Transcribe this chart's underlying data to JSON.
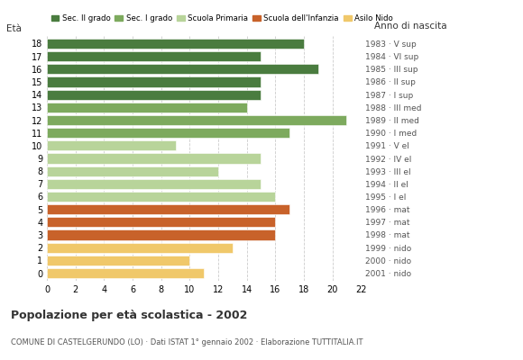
{
  "ages": [
    18,
    17,
    16,
    15,
    14,
    13,
    12,
    11,
    10,
    9,
    8,
    7,
    6,
    5,
    4,
    3,
    2,
    1,
    0
  ],
  "values": [
    18,
    15,
    19,
    15,
    15,
    14,
    21,
    17,
    9,
    15,
    12,
    15,
    16,
    17,
    16,
    16,
    13,
    10,
    11
  ],
  "colors_by_age": {
    "18": "#4a7c3f",
    "17": "#4a7c3f",
    "16": "#4a7c3f",
    "15": "#4a7c3f",
    "14": "#4a7c3f",
    "13": "#7daa5e",
    "12": "#7daa5e",
    "11": "#7daa5e",
    "10": "#b8d49a",
    "9": "#b8d49a",
    "8": "#b8d49a",
    "7": "#b8d49a",
    "6": "#b8d49a",
    "5": "#c8622a",
    "4": "#c8622a",
    "3": "#c8622a",
    "2": "#f0c86a",
    "1": "#f0c86a",
    "0": "#f0c86a"
  },
  "legend_colors": [
    "#4a7c3f",
    "#7daa5e",
    "#b8d49a",
    "#c8622a",
    "#f0c86a"
  ],
  "legend_labels": [
    "Sec. II grado",
    "Sec. I grado",
    "Scuola Primaria",
    "Scuola dell'Infanzia",
    "Asilo Nido"
  ],
  "right_labels": {
    "18": "1983 · V sup",
    "17": "1984 · VI sup",
    "16": "1985 · III sup",
    "15": "1986 · II sup",
    "14": "1987 · I sup",
    "13": "1988 · III med",
    "12": "1989 · II med",
    "11": "1990 · I med",
    "10": "1991 · V el",
    "9": "1992 · IV el",
    "8": "1993 · III el",
    "7": "1994 · II el",
    "6": "1995 · I el",
    "5": "1996 · mat",
    "4": "1997 · mat",
    "3": "1998 · mat",
    "2": "1999 · nido",
    "1": "2000 · nido",
    "0": "2001 · nido"
  },
  "anno_nascita_header": "Anno di nascita",
  "eta_label": "Età",
  "title": "Popolazione per età scolastica - 2002",
  "subtitle": "COMUNE DI CASTELGERUNDO (LO) · Dati ISTAT 1° gennaio 2002 · Elaborazione TUTTITALIA.IT",
  "xlim": [
    0,
    22
  ],
  "xticks": [
    0,
    2,
    4,
    6,
    8,
    10,
    12,
    14,
    16,
    18,
    20,
    22
  ],
  "bg_color": "#ffffff",
  "bar_height": 0.78
}
